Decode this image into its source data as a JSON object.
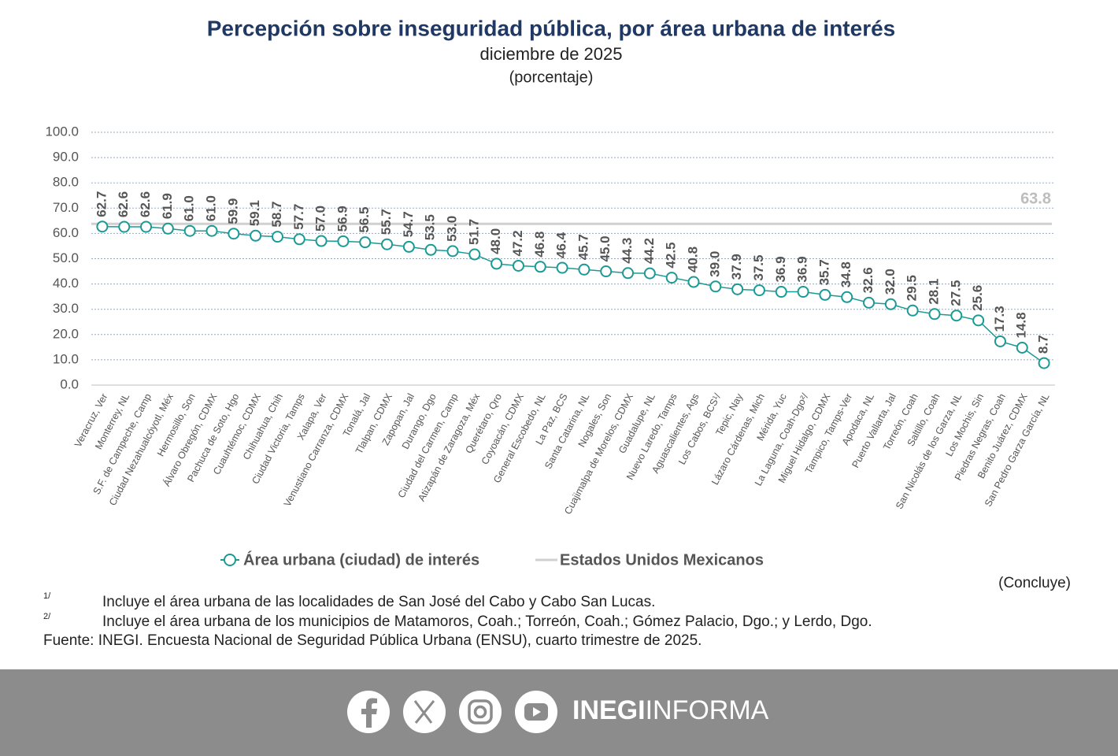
{
  "chart_data": {
    "type": "line",
    "title": "Percepción sobre inseguridad pública, por área urbana de interés",
    "subtitle": "diciembre de 2025",
    "unit_note": "(porcentaje)",
    "categories": [
      "Veracruz, Ver",
      "Monterrey, NL",
      "S.F. de Campeche, Camp",
      "Ciudad Nezahualcóyotl, Méx",
      "Hermosillo, Son",
      "Álvaro Obregón, CDMX",
      "Pachuca de Soto, Hgo",
      "Cuauhtémoc, CDMX",
      "Chihuahua, Chih",
      "Ciudad Victoria, Tamps",
      "Xalapa, Ver",
      "Venustiano Carranza, CDMX",
      "Tonalá, Jal",
      "Tlalpan, CDMX",
      "Zapopan, Jal",
      "Durango, Dgo",
      "Ciudad del Carmen, Camp",
      "Atizapán de Zaragoza, Méx",
      "Querétaro, Qro",
      "Coyoacán, CDMX",
      "General Escobedo, NL",
      "La Paz, BCS",
      "Santa Catarina, NL",
      "Nogales, Son",
      "Cuajimalpa de Morelos, CDMX",
      "Guadalupe, NL",
      "Nuevo Laredo, Tamps",
      "Aguascalientes, Ags",
      "Los Cabos, BCS¹/",
      "Tepic, Nay",
      "Lázaro Cárdenas, Mich",
      "Mérida, Yuc",
      "La Laguna, Coah-Dgo²/",
      "Miguel Hidalgo, CDMX",
      "Tampico, Tamps-Ver",
      "Apodaca, NL",
      "Puerto Vallarta, Jal",
      "Torreón, Coah",
      "Saltillo, Coah",
      "San Nicolás de los Garza, NL",
      "Los Mochis, Sin",
      "Piedras Negras, Coah",
      "Benito Juárez, CDMX",
      "San Pedro Garza García, NL"
    ],
    "series": [
      {
        "name": "Área urbana (ciudad) de interés",
        "color": "#1b9a95",
        "values": [
          62.7,
          62.6,
          62.6,
          61.9,
          61.0,
          61.0,
          59.9,
          59.1,
          58.7,
          57.7,
          57.0,
          56.9,
          56.5,
          55.7,
          54.7,
          53.5,
          53.0,
          51.7,
          48.0,
          47.2,
          46.8,
          46.4,
          45.7,
          45.0,
          44.3,
          44.2,
          42.5,
          40.8,
          39.0,
          37.9,
          37.5,
          36.9,
          36.9,
          35.7,
          34.8,
          32.6,
          32.0,
          29.5,
          28.1,
          27.5,
          25.6,
          17.3,
          14.8,
          8.7
        ],
        "value_labels": [
          "62.7",
          "62.6",
          "62.6",
          "61.9",
          "61.0",
          "61.0",
          "59.9",
          "59.1",
          "58.7",
          "57.7",
          "57.0",
          "56.9",
          "56.5",
          "55.7",
          "54.7",
          "53.5",
          "53.0",
          "51.7",
          "48.0",
          "47.2",
          "46.8",
          "46.4",
          "45.7",
          "45.0",
          "44.3",
          "44.2",
          "42.5",
          "40.8",
          "39.0",
          "37.9",
          "37.5",
          "36.9",
          "36.9",
          "35.7",
          "34.8",
          "32.6",
          "32.0",
          "29.5",
          "28.1",
          "27.5",
          "25.6",
          "17.3",
          "14.8",
          "8.7"
        ]
      }
    ],
    "reference_line": {
      "name": "Estados Unidos Mexicanos",
      "value": 63.8,
      "color": "#d0d0d0"
    },
    "ylim": [
      0,
      100
    ],
    "yticks": [
      {
        "value": 0,
        "label": "0.0"
      },
      {
        "value": 10,
        "label": "10.0"
      },
      {
        "value": 20,
        "label": "20.0"
      },
      {
        "value": 30,
        "label": "30.0"
      },
      {
        "value": 40,
        "label": "40.0"
      },
      {
        "value": 50,
        "label": "50.0"
      },
      {
        "value": 60,
        "label": "60.0"
      },
      {
        "value": 70,
        "label": "70.0"
      },
      {
        "value": 80,
        "label": "80.0"
      },
      {
        "value": 90,
        "label": "90.0"
      },
      {
        "value": 100,
        "label": "100.0"
      }
    ],
    "grid": true,
    "status_note": "(Concluye)",
    "footnotes": [
      {
        "mark": "1/",
        "text": "Incluye el área urbana de las localidades de San José del Cabo y Cabo San Lucas."
      },
      {
        "mark": "2/",
        "text": "Incluye el área urbana de los municipios de Matamoros, Coah.; Torreón, Coah.; Gómez Palacio, Dgo.; y Lerdo, Dgo."
      }
    ],
    "source": "Fuente: INEGI. Encuesta Nacional de Seguridad Pública Urbana (ENSU), cuarto trimestre de 2025."
  },
  "footer": {
    "brand_bold": "INEGI",
    "brand_light": "INFORMA"
  }
}
